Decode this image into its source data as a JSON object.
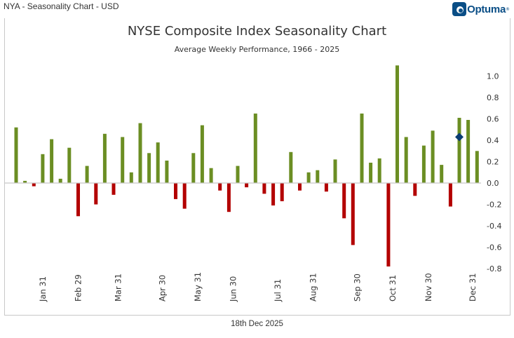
{
  "header": {
    "title": "NYA - Seasonality Chart - USD",
    "logo_text": "Optuma",
    "logo_reg": "®"
  },
  "footer": {
    "date": "18th Dec 2025"
  },
  "colors": {
    "positive": "#6b8e23",
    "negative": "#b30000",
    "marker": "#0a3d73",
    "zero_line": "#c8c8c8"
  },
  "chart_data": {
    "type": "bar",
    "title": "NYSE Composite Index Seasonality Chart",
    "subtitle": "Average Weekly Performance, 1966 - 2025",
    "xlabel": "",
    "ylabel": "",
    "ylim": [
      -0.8,
      1.1
    ],
    "yticks": [
      1.0,
      0.8,
      0.6,
      0.4,
      0.2,
      0.0,
      -0.2,
      -0.4,
      -0.6,
      -0.8
    ],
    "ytick_labels": [
      "1.0",
      "0.8",
      "0.6",
      "0.4",
      "0.2",
      "0.0",
      "-0.2",
      "-0.4",
      "-0.6",
      "-0.8"
    ],
    "y_axis_side": "right",
    "x_axis_labels": [
      {
        "label": "Jan 31",
        "week": 4
      },
      {
        "label": "Feb 29",
        "week": 8
      },
      {
        "label": "Mar 31",
        "week": 12.5
      },
      {
        "label": "Apr 30",
        "week": 17.5
      },
      {
        "label": "May 31",
        "week": 21.5
      },
      {
        "label": "Jun 30",
        "week": 25.5
      },
      {
        "label": "Jul 31",
        "week": 30.5
      },
      {
        "label": "Aug 31",
        "week": 34.5
      },
      {
        "label": "Sep 30",
        "week": 39.5
      },
      {
        "label": "Oct 31",
        "week": 43.5
      },
      {
        "label": "Nov 30",
        "week": 47.5
      },
      {
        "label": "Dec 31",
        "week": 52.5
      }
    ],
    "weeks": [
      1,
      2,
      3,
      4,
      5,
      6,
      7,
      8,
      9,
      10,
      11,
      12,
      13,
      14,
      15,
      16,
      17,
      18,
      19,
      20,
      21,
      22,
      23,
      24,
      25,
      26,
      27,
      28,
      29,
      30,
      31,
      32,
      33,
      34,
      35,
      36,
      37,
      38,
      39,
      40,
      41,
      42,
      43,
      44,
      45,
      46,
      47,
      48,
      49,
      50,
      51,
      52,
      53
    ],
    "values": [
      0.52,
      0.02,
      -0.03,
      0.27,
      0.41,
      0.04,
      0.33,
      -0.31,
      0.16,
      -0.2,
      0.46,
      -0.11,
      0.43,
      0.1,
      0.56,
      0.28,
      0.38,
      0.21,
      -0.15,
      -0.24,
      0.28,
      0.54,
      0.14,
      -0.07,
      -0.27,
      0.16,
      -0.04,
      0.65,
      -0.1,
      -0.21,
      -0.17,
      0.29,
      -0.07,
      0.1,
      0.12,
      -0.08,
      0.22,
      -0.33,
      -0.58,
      0.65,
      0.19,
      0.23,
      -0.78,
      1.1,
      0.43,
      -0.12,
      0.35,
      0.49,
      0.17,
      -0.22,
      0.61,
      0.59,
      0.3
    ],
    "current_week_marker": {
      "week": 51,
      "value": 0.43,
      "shape": "diamond"
    },
    "grid": false,
    "legend": "none"
  }
}
